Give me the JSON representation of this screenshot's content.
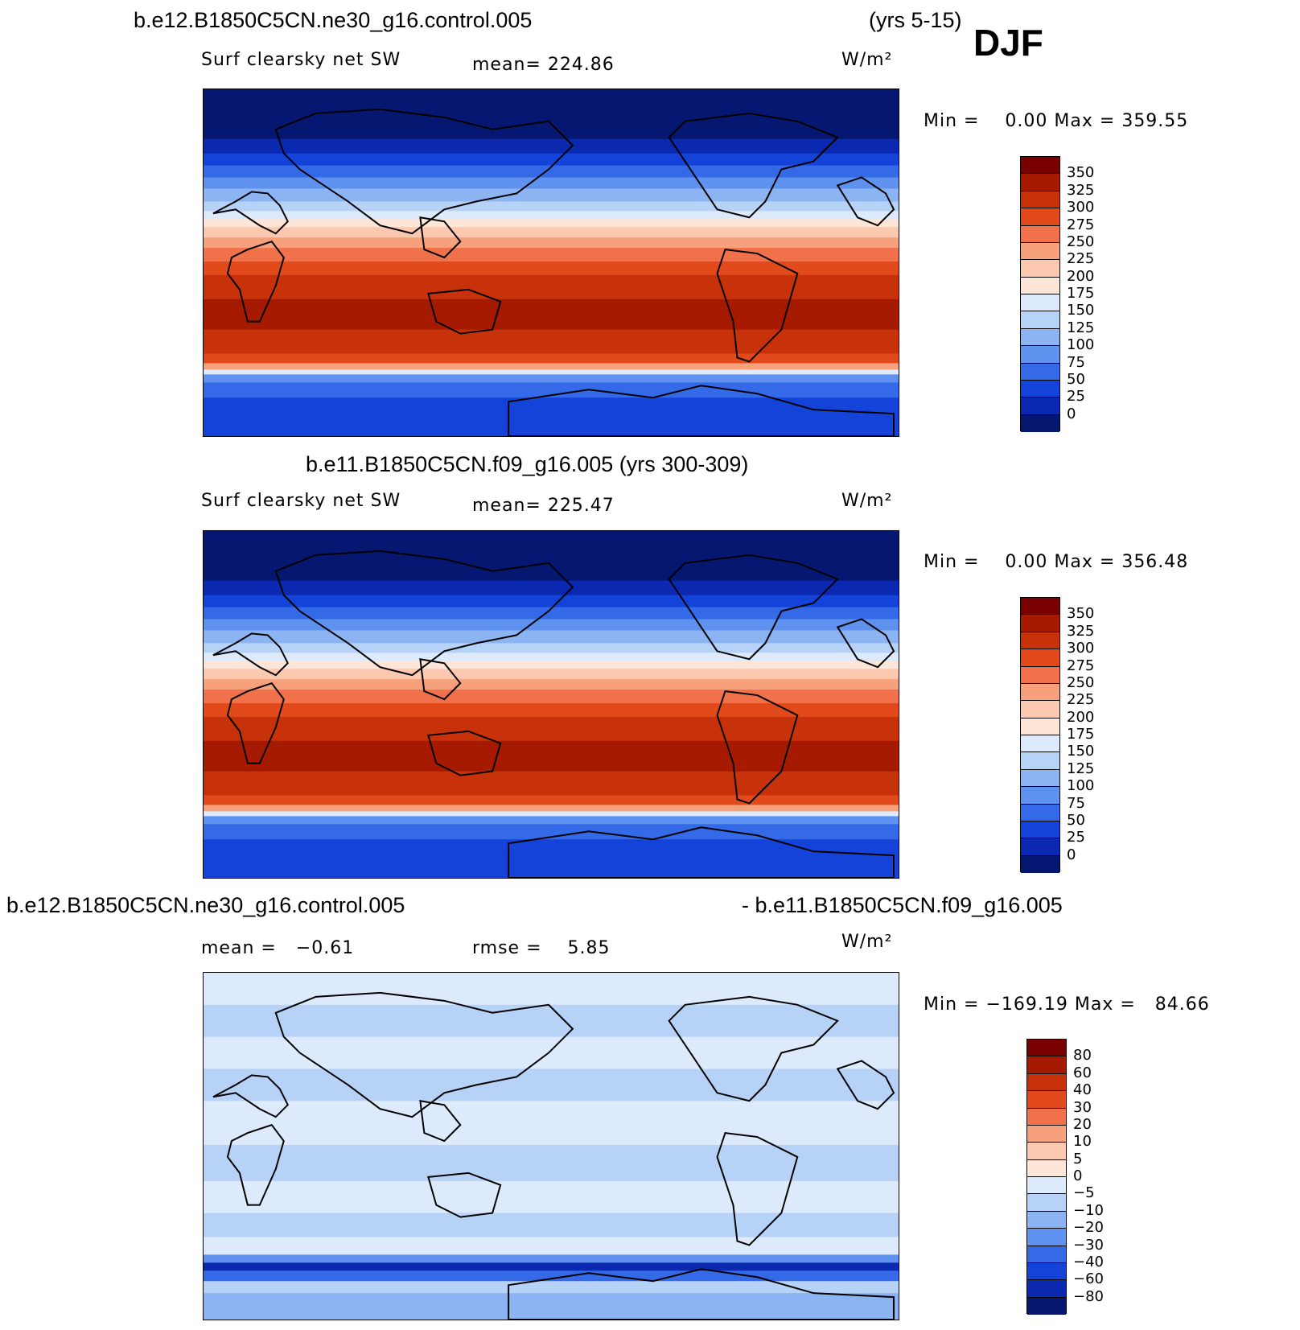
{
  "header": {
    "case1": "b.e12.B1850C5CN.ne30_g16.control.005",
    "years1": "(yrs 5-15)",
    "season": "DJF"
  },
  "panels": [
    {
      "variable": "Surf clearsky net SW",
      "mean": "mean= 224.86",
      "units": "W/m²",
      "minmax": "Min =    0.00 Max = 359.55",
      "colorbar_labels": [
        "350",
        "325",
        "300",
        "275",
        "250",
        "225",
        "200",
        "175",
        "150",
        "125",
        "100",
        "75",
        "50",
        "25",
        "0"
      ]
    },
    {
      "title": "b.e11.B1850C5CN.f09_g16.005 (yrs 300-309)",
      "variable": "Surf clearsky net SW",
      "mean": "mean= 225.47",
      "units": "W/m²",
      "minmax": "Min =    0.00 Max = 356.48",
      "colorbar_labels": [
        "350",
        "325",
        "300",
        "275",
        "250",
        "225",
        "200",
        "175",
        "150",
        "125",
        "100",
        "75",
        "50",
        "25",
        "0"
      ]
    },
    {
      "title_left": "b.e12.B1850C5CN.ne30_g16.control.005",
      "title_right": "- b.e11.B1850C5CN.f09_g16.005",
      "mean": "mean =   −0.61",
      "rmse": "rmse =    5.85",
      "units": "W/m²",
      "minmax": "Min = −169.19 Max =   84.66",
      "colorbar_labels": [
        "80",
        "60",
        "40",
        "30",
        "20",
        "10",
        "5",
        "0",
        "−5",
        "−10",
        "−20",
        "−30",
        "−40",
        "−60",
        "−80"
      ]
    }
  ],
  "colors": {
    "field_scale": [
      "#7a0000",
      "#a51a00",
      "#c8320a",
      "#e24a1c",
      "#f0714a",
      "#f7a07c",
      "#fcc9b0",
      "#fde6d8",
      "#dceafb",
      "#b6d2f7",
      "#8cb4f2",
      "#5f92ee",
      "#3469e8",
      "#1343d8",
      "#0a29b0",
      "#051770"
    ],
    "diff_scale": [
      "#7a0000",
      "#a51a00",
      "#c8320a",
      "#e24a1c",
      "#f0714a",
      "#f7a07c",
      "#fcc9b0",
      "#fde6d8",
      "#dceafb",
      "#b6d2f7",
      "#8cb4f2",
      "#5f92ee",
      "#3469e8",
      "#1343d8",
      "#0a29b0",
      "#051770"
    ]
  }
}
